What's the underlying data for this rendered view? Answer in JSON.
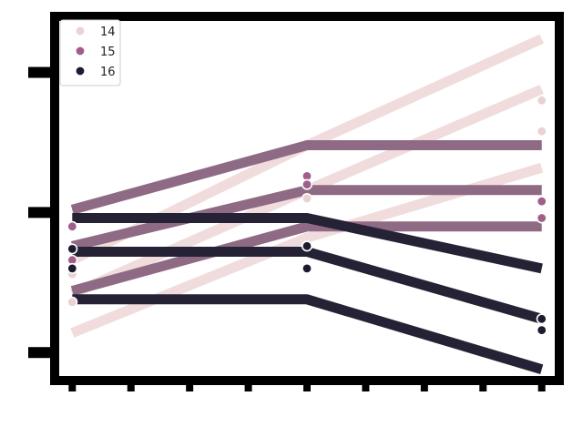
{
  "chart_data": {
    "type": "scatter",
    "title": "",
    "xlabel": "",
    "ylabel": "",
    "grid": false,
    "legend_position": "top-left",
    "legend_title": "",
    "colors": {
      "background": "#ffffff",
      "frame": "#000000",
      "line_14": "#f0dcdc",
      "line_15": "#8f6a84",
      "line_16": "#262235",
      "point_14": "#ead2d2",
      "point_15": "#a05f8b",
      "point_16": "#1f1b2f"
    },
    "series": [
      {
        "name": "14",
        "color": "#ead2d2",
        "line_color": "#f0dcdc",
        "points": [
          {
            "x": 0,
            "y": 0.28
          },
          {
            "x": 0,
            "y": 0.18
          },
          {
            "x": 4,
            "y": 0.55
          },
          {
            "x": 4,
            "y": 0.38
          },
          {
            "x": 8,
            "y": 0.9
          },
          {
            "x": 8,
            "y": 0.79
          }
        ],
        "fits": [
          {
            "x": [
              0,
              4,
              8
            ],
            "y": [
              0.33,
              0.74,
              1.12
            ]
          },
          {
            "x": [
              0,
              4,
              8
            ],
            "y": [
              0.21,
              0.58,
              0.94
            ]
          },
          {
            "x": [
              0,
              4,
              8
            ],
            "y": [
              0.07,
              0.41,
              0.66
            ]
          }
        ]
      },
      {
        "name": "15",
        "color": "#a05f8b",
        "line_color": "#8f6a84",
        "points": [
          {
            "x": 0,
            "y": 0.45
          },
          {
            "x": 0,
            "y": 0.33
          },
          {
            "x": 4,
            "y": 0.63
          },
          {
            "x": 4,
            "y": 0.6
          },
          {
            "x": 8,
            "y": 0.54
          },
          {
            "x": 8,
            "y": 0.48
          }
        ],
        "fits": [
          {
            "x": [
              0,
              4,
              8
            ],
            "y": [
              0.51,
              0.74,
              0.74
            ]
          },
          {
            "x": [
              0,
              4,
              8
            ],
            "y": [
              0.38,
              0.58,
              0.58
            ]
          },
          {
            "x": [
              0,
              4,
              8
            ],
            "y": [
              0.22,
              0.45,
              0.45
            ]
          }
        ]
      },
      {
        "name": "16",
        "color": "#1f1b2f",
        "line_color": "#262235",
        "points": [
          {
            "x": 0,
            "y": 0.37
          },
          {
            "x": 0,
            "y": 0.3
          },
          {
            "x": 4,
            "y": 0.38
          },
          {
            "x": 4,
            "y": 0.3
          },
          {
            "x": 8,
            "y": 0.12
          },
          {
            "x": 8,
            "y": 0.08
          }
        ],
        "fits": [
          {
            "x": [
              0,
              4,
              8
            ],
            "y": [
              0.48,
              0.48,
              0.3
            ]
          },
          {
            "x": [
              0,
              4,
              8
            ],
            "y": [
              0.36,
              0.36,
              0.12
            ]
          },
          {
            "x": [
              0,
              4,
              8
            ],
            "y": [
              0.19,
              0.19,
              -0.06
            ]
          }
        ]
      }
    ],
    "xlim": [
      -0.3,
      8.3
    ],
    "ylim": [
      -0.1,
      1.2
    ]
  }
}
